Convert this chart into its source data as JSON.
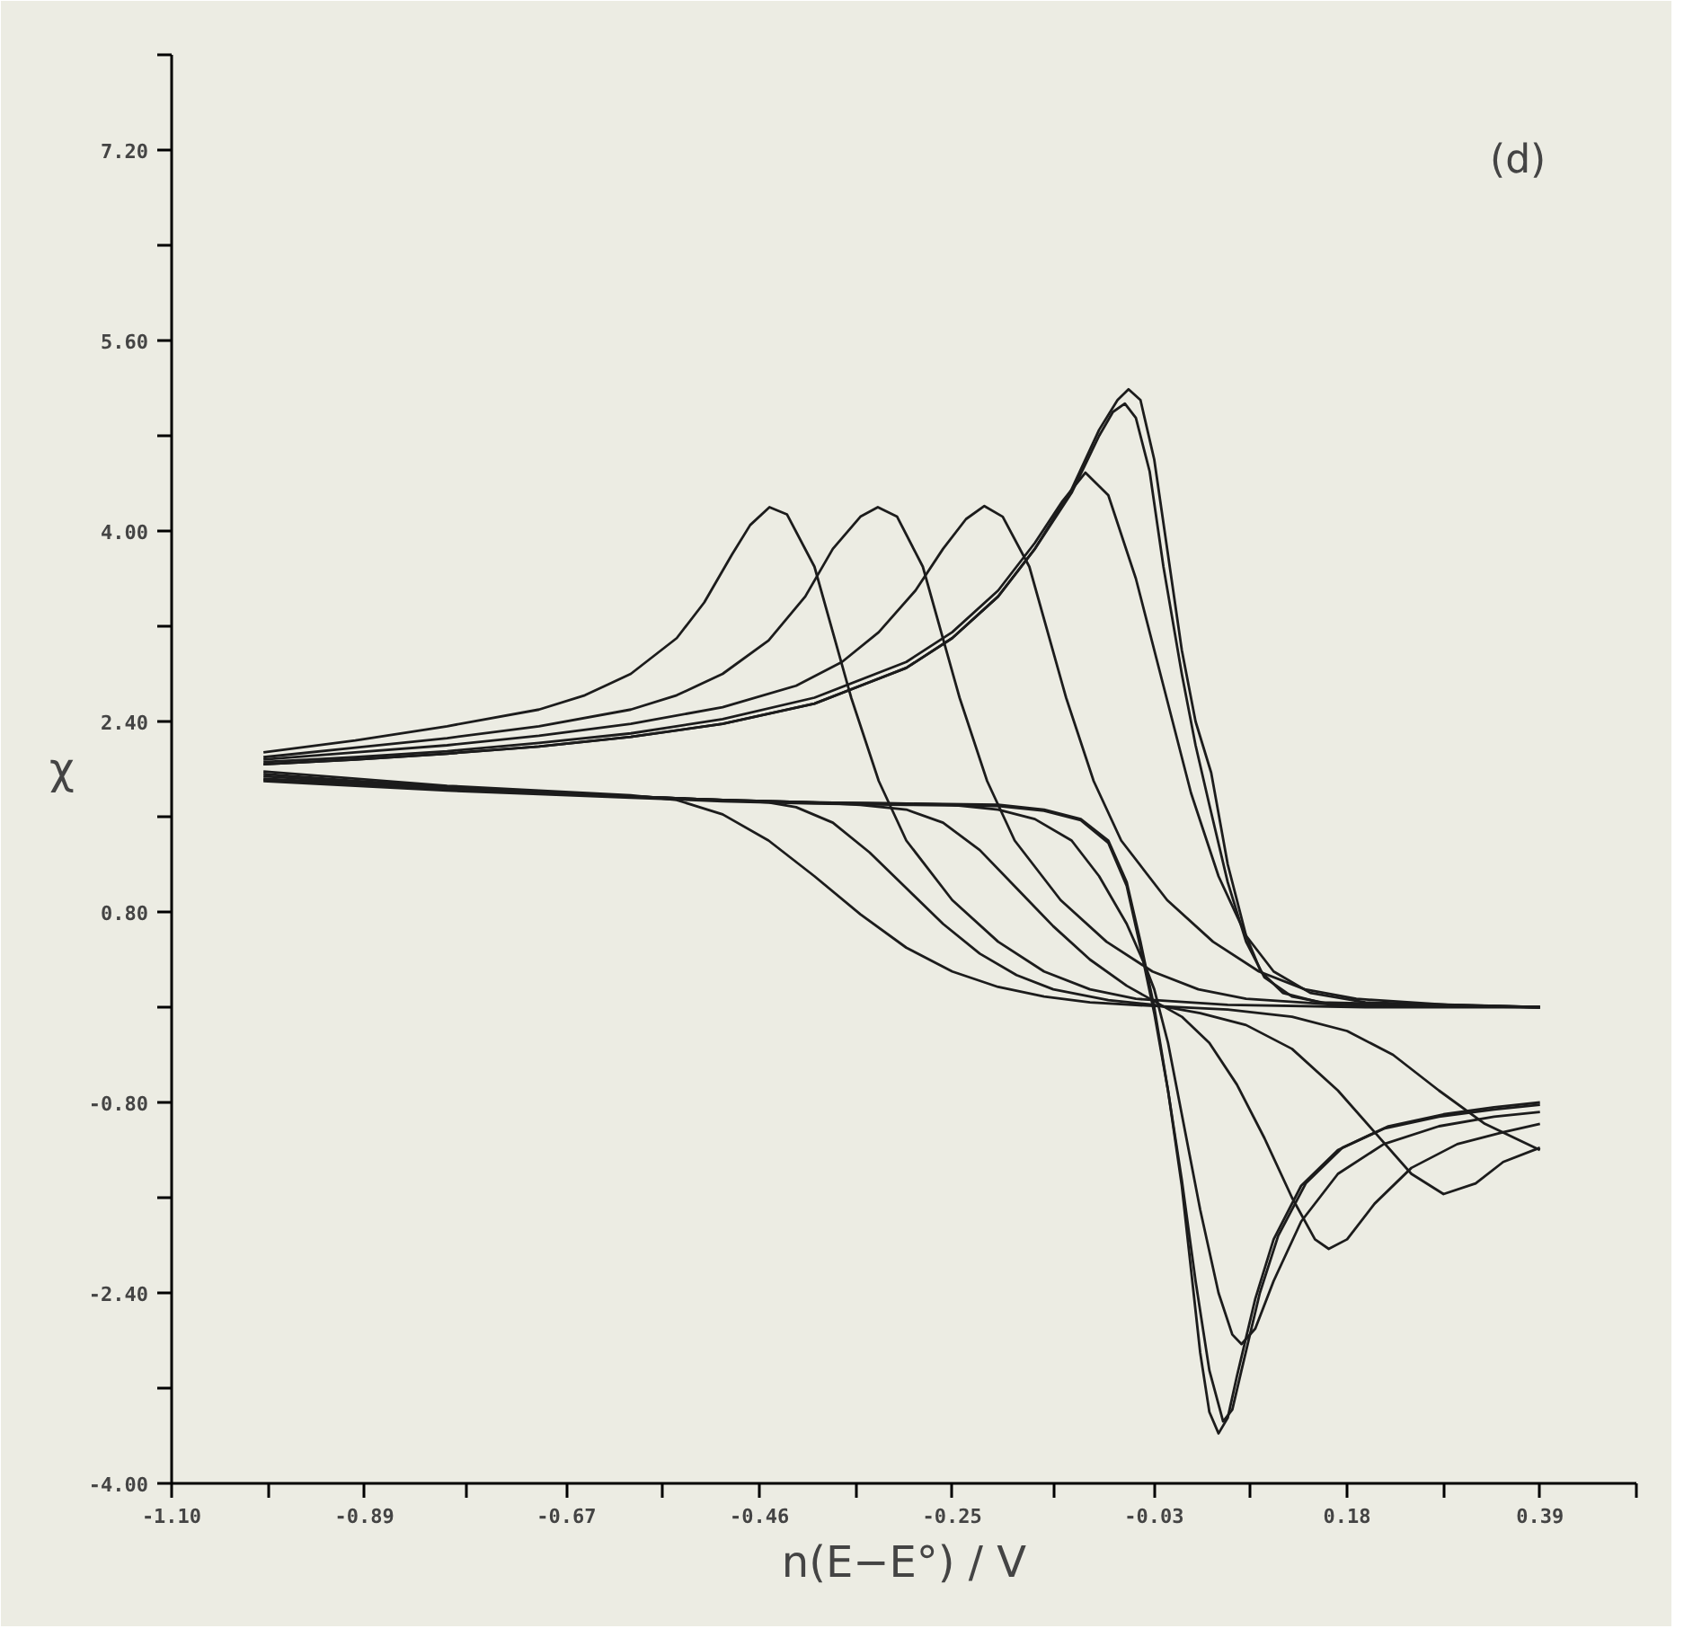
{
  "chart_data": {
    "type": "line",
    "xlabel": "n(E−E°) / V",
    "ylabel": "χ",
    "annotations": [
      "(d)"
    ],
    "xlim": [
      -1.1,
      0.495
    ],
    "ylim": [
      -4.0,
      8.0
    ],
    "xticks": [
      {
        "value": -1.1,
        "label": "-1.10"
      },
      {
        "value": -0.995,
        "label": null
      },
      {
        "value": -0.89,
        "label": "-0.89"
      },
      {
        "value": -0.78,
        "label": null
      },
      {
        "value": -0.67,
        "label": "-0.67"
      },
      {
        "value": -0.565,
        "label": null
      },
      {
        "value": -0.46,
        "label": "-0.46"
      },
      {
        "value": -0.355,
        "label": null
      },
      {
        "value": -0.25,
        "label": "-0.25"
      },
      {
        "value": -0.14,
        "label": null
      },
      {
        "value": -0.03,
        "label": "-0.03"
      },
      {
        "value": 0.075,
        "label": null
      },
      {
        "value": 0.18,
        "label": "0.18"
      },
      {
        "value": 0.285,
        "label": null
      },
      {
        "value": 0.39,
        "label": "0.39"
      },
      {
        "value": 0.495,
        "label": null
      }
    ],
    "yticks": [
      {
        "value": -4.0,
        "label": "-4.00"
      },
      {
        "value": -3.2,
        "label": null
      },
      {
        "value": -2.4,
        "label": "-2.40"
      },
      {
        "value": -1.6,
        "label": null
      },
      {
        "value": -0.8,
        "label": "-0.80"
      },
      {
        "value": 0.0,
        "label": null
      },
      {
        "value": 0.8,
        "label": "0.80"
      },
      {
        "value": 1.6,
        "label": null
      },
      {
        "value": 2.4,
        "label": "2.40"
      },
      {
        "value": 3.2,
        "label": null
      },
      {
        "value": 4.0,
        "label": "4.00"
      },
      {
        "value": 4.8,
        "label": null
      },
      {
        "value": 5.6,
        "label": "5.60"
      },
      {
        "value": 6.4,
        "label": null
      },
      {
        "value": 7.2,
        "label": "7.20"
      },
      {
        "value": 8.0,
        "label": null
      }
    ],
    "grid": false,
    "line_style": "solid",
    "series": [
      {
        "color": "#1c1c1c",
        "x": [
          -1.0,
          -0.9,
          -0.8,
          -0.7,
          -0.65,
          -0.6,
          -0.55,
          -0.52,
          -0.49,
          -0.47,
          -0.449,
          -0.43,
          -0.4,
          -0.36,
          -0.33,
          -0.3,
          -0.25,
          -0.2,
          -0.15,
          -0.1,
          -0.05,
          0.05,
          0.2,
          0.39
        ],
        "values": [
          2.14,
          2.24,
          2.36,
          2.5,
          2.62,
          2.8,
          3.1,
          3.4,
          3.8,
          4.05,
          4.2,
          4.14,
          3.7,
          2.6,
          1.9,
          1.4,
          0.9,
          0.55,
          0.3,
          0.15,
          0.07,
          0.02,
          0.0,
          0.0
        ]
      },
      {
        "color": "#1c1c1c",
        "x": [
          -1.0,
          -0.9,
          -0.8,
          -0.7,
          -0.6,
          -0.55,
          -0.5,
          -0.45,
          -0.41,
          -0.38,
          -0.35,
          -0.331,
          -0.31,
          -0.282,
          -0.242,
          -0.212,
          -0.182,
          -0.132,
          -0.082,
          -0.032,
          0.018,
          0.07,
          0.17,
          0.39
        ],
        "values": [
          2.1,
          2.18,
          2.26,
          2.36,
          2.5,
          2.62,
          2.8,
          3.08,
          3.45,
          3.85,
          4.12,
          4.2,
          4.12,
          3.7,
          2.6,
          1.9,
          1.4,
          0.9,
          0.55,
          0.3,
          0.15,
          0.07,
          0.02,
          0.0
        ]
      },
      {
        "color": "#1c1c1c",
        "x": [
          -1.0,
          -0.9,
          -0.8,
          -0.7,
          -0.6,
          -0.5,
          -0.42,
          -0.37,
          -0.33,
          -0.29,
          -0.26,
          -0.235,
          -0.215,
          -0.195,
          -0.166,
          -0.126,
          -0.096,
          -0.066,
          -0.016,
          0.034,
          0.084,
          0.134,
          0.19,
          0.29,
          0.39
        ],
        "values": [
          2.08,
          2.14,
          2.2,
          2.28,
          2.38,
          2.52,
          2.7,
          2.9,
          3.15,
          3.5,
          3.85,
          4.1,
          4.21,
          4.12,
          3.7,
          2.6,
          1.9,
          1.4,
          0.9,
          0.55,
          0.3,
          0.15,
          0.07,
          0.02,
          0.0
        ]
      },
      {
        "color": "#1c1c1c",
        "x": [
          -1.0,
          -0.9,
          -0.8,
          -0.7,
          -0.6,
          -0.5,
          -0.4,
          -0.3,
          -0.25,
          -0.2,
          -0.16,
          -0.13,
          -0.105,
          -0.08,
          -0.05,
          -0.02,
          0.01,
          0.04,
          0.07,
          0.1,
          0.14,
          0.2,
          0.39
        ],
        "values": [
          2.06,
          2.1,
          2.15,
          2.22,
          2.3,
          2.42,
          2.6,
          2.9,
          3.15,
          3.5,
          3.9,
          4.25,
          4.49,
          4.3,
          3.6,
          2.7,
          1.8,
          1.1,
          0.6,
          0.3,
          0.12,
          0.04,
          0.0
        ]
      },
      {
        "color": "#1c1c1c",
        "x": [
          -1.0,
          -0.9,
          -0.8,
          -0.7,
          -0.6,
          -0.5,
          -0.4,
          -0.3,
          -0.25,
          -0.2,
          -0.16,
          -0.12,
          -0.09,
          -0.07,
          -0.058,
          -0.045,
          -0.03,
          -0.015,
          0.0,
          0.015,
          0.032,
          0.05,
          0.07,
          0.086,
          0.11,
          0.15,
          0.39
        ],
        "values": [
          2.04,
          2.08,
          2.13,
          2.19,
          2.27,
          2.38,
          2.55,
          2.85,
          3.1,
          3.45,
          3.85,
          4.35,
          4.85,
          5.1,
          5.19,
          5.1,
          4.6,
          3.8,
          3.0,
          2.4,
          1.97,
          1.2,
          0.6,
          0.3,
          0.12,
          0.04,
          0.0
        ]
      },
      {
        "color": "#1c1c1c",
        "x": [
          -1.0,
          -0.9,
          -0.8,
          -0.7,
          -0.6,
          -0.5,
          -0.4,
          -0.3,
          -0.25,
          -0.2,
          -0.16,
          -0.12,
          -0.09,
          -0.075,
          -0.062,
          -0.05,
          -0.035,
          -0.02,
          0.0,
          0.015,
          0.03,
          0.05,
          0.07,
          0.09,
          0.12,
          0.16,
          0.39
        ],
        "values": [
          2.04,
          2.08,
          2.13,
          2.19,
          2.27,
          2.38,
          2.55,
          2.85,
          3.1,
          3.45,
          3.85,
          4.32,
          4.8,
          5.0,
          5.07,
          4.95,
          4.5,
          3.7,
          2.8,
          2.2,
          1.7,
          1.05,
          0.55,
          0.25,
          0.09,
          0.03,
          0.0
        ]
      },
      {
        "color": "#1c1c1c",
        "x": [
          -1.0,
          -0.9,
          -0.8,
          -0.7,
          -0.6,
          -0.55,
          -0.5,
          -0.45,
          -0.4,
          -0.35,
          -0.3,
          -0.25,
          -0.2,
          -0.15,
          -0.1,
          -0.03,
          0.05,
          0.12,
          0.18,
          0.23,
          0.28,
          0.33,
          0.39
        ],
        "values": [
          1.98,
          1.92,
          1.86,
          1.82,
          1.78,
          1.74,
          1.62,
          1.4,
          1.1,
          0.78,
          0.5,
          0.3,
          0.17,
          0.09,
          0.04,
          0.01,
          -0.02,
          -0.08,
          -0.2,
          -0.4,
          -0.7,
          -0.98,
          -1.2
        ]
      },
      {
        "color": "#1c1c1c",
        "x": [
          -1.0,
          -0.9,
          -0.8,
          -0.7,
          -0.6,
          -0.5,
          -0.45,
          -0.42,
          -0.38,
          -0.34,
          -0.3,
          -0.26,
          -0.22,
          -0.18,
          -0.14,
          -0.08,
          -0.03,
          0.02,
          0.07,
          0.12,
          0.17,
          0.21,
          0.25,
          0.285,
          0.32,
          0.35,
          0.39
        ],
        "values": [
          1.96,
          1.9,
          1.85,
          1.81,
          1.77,
          1.74,
          1.72,
          1.68,
          1.55,
          1.3,
          1.0,
          0.7,
          0.45,
          0.27,
          0.15,
          0.06,
          0.02,
          -0.05,
          -0.15,
          -0.35,
          -0.7,
          -1.05,
          -1.4,
          -1.57,
          -1.48,
          -1.3,
          -1.18
        ]
      },
      {
        "color": "#1c1c1c",
        "x": [
          -1.0,
          -0.9,
          -0.8,
          -0.7,
          -0.6,
          -0.5,
          -0.4,
          -0.35,
          -0.3,
          -0.26,
          -0.22,
          -0.18,
          -0.14,
          -0.1,
          -0.06,
          -0.03,
          0.0,
          0.03,
          0.06,
          0.09,
          0.12,
          0.145,
          0.16,
          0.18,
          0.21,
          0.25,
          0.3,
          0.35,
          0.39
        ],
        "values": [
          1.94,
          1.89,
          1.84,
          1.8,
          1.77,
          1.74,
          1.72,
          1.7,
          1.66,
          1.55,
          1.32,
          1.0,
          0.68,
          0.4,
          0.18,
          0.05,
          -0.08,
          -0.3,
          -0.65,
          -1.1,
          -1.6,
          -1.95,
          -2.03,
          -1.95,
          -1.65,
          -1.35,
          -1.15,
          -1.05,
          -0.98
        ]
      },
      {
        "color": "#1c1c1c",
        "x": [
          -1.0,
          -0.9,
          -0.8,
          -0.7,
          -0.6,
          -0.5,
          -0.4,
          -0.3,
          -0.25,
          -0.2,
          -0.16,
          -0.12,
          -0.09,
          -0.06,
          -0.04,
          -0.03,
          -0.015,
          0.0,
          0.02,
          0.04,
          0.055,
          0.065,
          0.08,
          0.1,
          0.13,
          0.17,
          0.22,
          0.28,
          0.34,
          0.39
        ],
        "values": [
          1.92,
          1.88,
          1.84,
          1.8,
          1.77,
          1.74,
          1.72,
          1.71,
          1.7,
          1.66,
          1.58,
          1.4,
          1.1,
          0.7,
          0.35,
          0.15,
          -0.3,
          -0.9,
          -1.7,
          -2.4,
          -2.75,
          -2.83,
          -2.7,
          -2.3,
          -1.8,
          -1.4,
          -1.15,
          -1.0,
          -0.92,
          -0.88
        ]
      },
      {
        "color": "#1c1c1c",
        "x": [
          -1.0,
          -0.9,
          -0.8,
          -0.7,
          -0.6,
          -0.5,
          -0.4,
          -0.3,
          -0.2,
          -0.15,
          -0.11,
          -0.08,
          -0.06,
          -0.045,
          -0.03,
          -0.015,
          0.0,
          0.01,
          0.02,
          0.03,
          0.04,
          0.05,
          0.06,
          0.08,
          0.1,
          0.13,
          0.17,
          0.22,
          0.28,
          0.34,
          0.39
        ],
        "values": [
          1.91,
          1.87,
          1.83,
          1.8,
          1.77,
          1.74,
          1.72,
          1.71,
          1.7,
          1.66,
          1.58,
          1.4,
          1.05,
          0.55,
          0.0,
          -0.7,
          -1.5,
          -2.2,
          -2.9,
          -3.4,
          -3.58,
          -3.45,
          -3.1,
          -2.45,
          -1.95,
          -1.5,
          -1.2,
          -1.02,
          -0.92,
          -0.86,
          -0.82
        ]
      },
      {
        "color": "#1c1c1c",
        "x": [
          -1.0,
          -0.9,
          -0.8,
          -0.7,
          -0.6,
          -0.5,
          -0.4,
          -0.3,
          -0.2,
          -0.15,
          -0.11,
          -0.08,
          -0.06,
          -0.045,
          -0.03,
          -0.015,
          0.0,
          0.015,
          0.03,
          0.045,
          0.055,
          0.065,
          0.085,
          0.105,
          0.135,
          0.175,
          0.225,
          0.285,
          0.34,
          0.39
        ],
        "values": [
          1.9,
          1.86,
          1.82,
          1.79,
          1.76,
          1.73,
          1.71,
          1.7,
          1.69,
          1.65,
          1.57,
          1.38,
          1.02,
          0.5,
          -0.05,
          -0.7,
          -1.45,
          -2.3,
          -3.05,
          -3.48,
          -3.38,
          -3.05,
          -2.4,
          -1.92,
          -1.48,
          -1.18,
          -1.0,
          -0.9,
          -0.84,
          -0.8
        ]
      }
    ]
  }
}
